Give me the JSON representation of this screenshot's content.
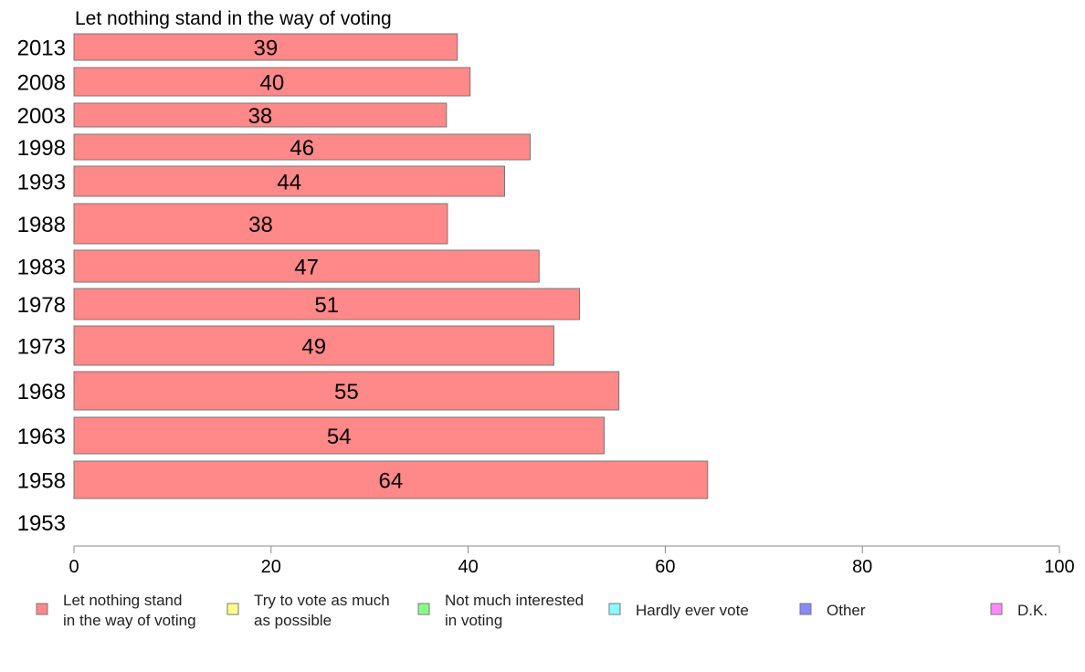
{
  "chart_data": {
    "type": "bar",
    "orientation": "horizontal",
    "title": "Let nothing stand in the way of voting",
    "categories": [
      "2013",
      "2008",
      "2003",
      "1998",
      "1993",
      "1988",
      "1983",
      "1978",
      "1973",
      "1968",
      "1963",
      "1958",
      "1953"
    ],
    "series": [
      {
        "name": "Let nothing stand in the way of voting",
        "color": "#ff8888",
        "values": [
          39,
          40,
          38,
          46,
          44,
          38,
          47,
          51,
          49,
          55,
          54,
          64,
          null
        ],
        "labels": [
          "39",
          "40",
          "38",
          "46",
          "44",
          "38",
          "47",
          "51",
          "49",
          "55",
          "54",
          "64",
          ""
        ],
        "exact_values": [
          38.9,
          40.2,
          37.8,
          46.3,
          43.7,
          37.9,
          47.2,
          51.3,
          48.7,
          55.3,
          53.8,
          64.3,
          null
        ]
      }
    ],
    "xlim": [
      0,
      100
    ],
    "xticks": [
      "0",
      "20",
      "40",
      "60",
      "80",
      "100"
    ],
    "grid": false,
    "legend_position": "bottom",
    "legend": [
      {
        "lines": [
          "Let nothing stand",
          "in the way of voting"
        ],
        "color": "#ff8888"
      },
      {
        "lines": [
          "Try to vote as much",
          "as possible"
        ],
        "color": "#ffff88"
      },
      {
        "lines": [
          "Not much interested",
          "in voting"
        ],
        "color": "#88ff88"
      },
      {
        "lines": [
          "Hardly ever vote"
        ],
        "color": "#88ffff"
      },
      {
        "lines": [
          "Other"
        ],
        "color": "#8888ff"
      },
      {
        "lines": [
          "D.K."
        ],
        "color": "#ff88ff"
      }
    ]
  }
}
